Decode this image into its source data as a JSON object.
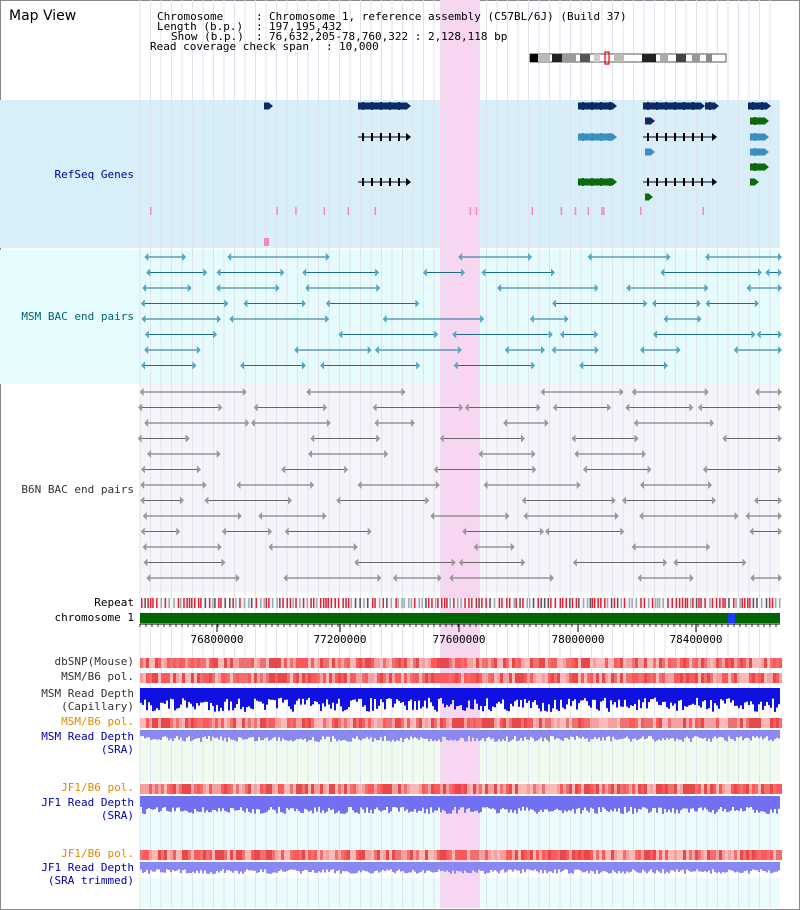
{
  "page_title": "Map View",
  "header": {
    "rows": [
      {
        "key": "Chromosome",
        "colon": ":",
        "value": "Chromosome 1, reference assembly (C57BL/6J) (Build 37)"
      },
      {
        "key": "Length (b.p.)",
        "colon": ":",
        "value": "197,195,432"
      },
      {
        "key": "Show (b.p.)",
        "colon": ":",
        "value": "76,632,205-78,760,322 : 2,128,118 bp"
      },
      {
        "key": "Read coverage check span",
        "colon": ":",
        "value": "10,000"
      }
    ]
  },
  "tracks": {
    "refseq": "RefSeq Genes",
    "msm_bac": "MSM BAC end pairs",
    "b6n_bac": "B6N BAC end pairs",
    "repeat": "Repeat",
    "chromosome": "chromosome 1",
    "dbsnp": "dbSNP(Mouse)",
    "msm_b6_pol": "MSM/B6 pol.",
    "msm_read_depth_cap_1": "MSM Read Depth",
    "msm_read_depth_cap_2": "(Capillary)",
    "msm_b6_pol_sra": "MSM/B6 pol.",
    "msm_read_depth_sra_1": "MSM Read Depth",
    "msm_read_depth_sra_2": "(SRA)",
    "jf1_b6_pol": "JF1/B6 pol.",
    "jf1_read_depth_1": "JF1 Read Depth",
    "jf1_read_depth_2": "(SRA)",
    "jf1_b6_pol_trim": "JF1/B6 pol.",
    "jf1_read_depth_trim_1": "JF1 Read Depth",
    "jf1_read_depth_trim_2": "(SRA trimmed)"
  },
  "axis": {
    "ticks": [
      "76800000",
      "77200000",
      "77600000",
      "78000000",
      "78400000"
    ]
  },
  "colors": {
    "refseq_bg": "#d8eef8",
    "msm_bg": "#e6fbfb",
    "b6n_bg": "#f4f4fa",
    "highlight": "#f8d6f2",
    "refseq_label": "#00009a",
    "msm_label": "#006677",
    "b6n_label": "#333333",
    "orange_label": "#e08a00",
    "blue_label": "#0000aa",
    "chromosome_bar": "#006600"
  }
}
